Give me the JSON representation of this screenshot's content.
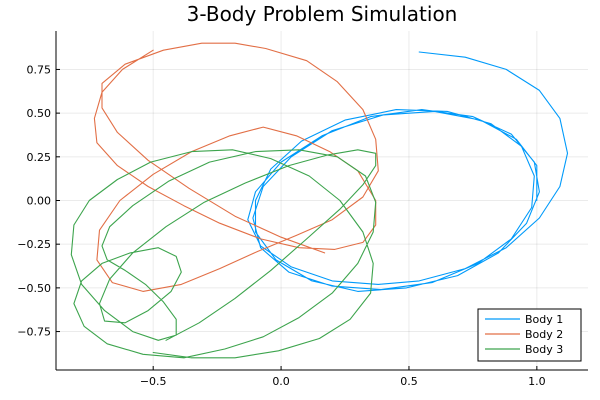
{
  "chart_data": {
    "type": "line",
    "title": "3-Body Problem Simulation",
    "xlabel": "",
    "ylabel": "",
    "xlim": [
      -0.88,
      1.2
    ],
    "ylim": [
      -0.97,
      0.97
    ],
    "xticks": [
      -0.5,
      0.0,
      0.5,
      1.0
    ],
    "xtick_labels": [
      "−0.5",
      "0.0",
      "0.5",
      "1.0"
    ],
    "yticks": [
      -0.75,
      -0.5,
      -0.25,
      0.0,
      0.25,
      0.5,
      0.75
    ],
    "ytick_labels": [
      "−0.75",
      "−0.50",
      "−0.25",
      "0.00",
      "0.25",
      "0.50",
      "0.75"
    ],
    "grid": true,
    "legend_position": "bottom-right",
    "series": [
      {
        "name": "Body 1",
        "color": "#009AFA",
        "x": [
          0.54,
          0.72,
          0.88,
          1.01,
          1.09,
          1.12,
          1.09,
          1.01,
          0.88,
          0.72,
          0.54,
          0.38,
          0.2,
          0.04,
          -0.08,
          -0.13,
          -0.1,
          0.0,
          0.16,
          0.35,
          0.55,
          0.75,
          0.9,
          0.99,
          1.01,
          0.96,
          0.85,
          0.69,
          0.49,
          0.3,
          0.12,
          -0.02,
          -0.1,
          -0.1,
          -0.04,
          0.08,
          0.25,
          0.45,
          0.65,
          0.82,
          0.94,
          0.99,
          0.98,
          0.9,
          0.77,
          0.59,
          0.39,
          0.2,
          0.03,
          -0.08,
          -0.11,
          -0.07,
          0.04,
          0.2,
          0.4,
          0.6,
          0.78,
          0.92,
          1.0,
          1.0
        ],
        "y": [
          0.85,
          0.82,
          0.75,
          0.63,
          0.47,
          0.27,
          0.08,
          -0.1,
          -0.27,
          -0.39,
          -0.46,
          -0.48,
          -0.46,
          -0.38,
          -0.26,
          -0.11,
          0.05,
          0.22,
          0.37,
          0.48,
          0.52,
          0.48,
          0.38,
          0.22,
          0.05,
          -0.13,
          -0.3,
          -0.43,
          -0.5,
          -0.52,
          -0.46,
          -0.34,
          -0.18,
          0.0,
          0.18,
          0.34,
          0.46,
          0.52,
          0.51,
          0.44,
          0.31,
          0.14,
          -0.04,
          -0.22,
          -0.36,
          -0.47,
          -0.51,
          -0.49,
          -0.41,
          -0.27,
          -0.1,
          0.08,
          0.25,
          0.4,
          0.49,
          0.51,
          0.46,
          0.35,
          0.2,
          0.0
        ]
      },
      {
        "name": "Body 2",
        "color": "#E26F46",
        "x": [
          -0.5,
          -0.62,
          -0.7,
          -0.73,
          -0.72,
          -0.64,
          -0.52,
          -0.38,
          -0.24,
          -0.08,
          0.07,
          0.21,
          0.32,
          0.37,
          0.37,
          0.3,
          0.19,
          0.06,
          -0.07,
          -0.2,
          -0.35,
          -0.5,
          -0.63,
          -0.71,
          -0.72,
          -0.66,
          -0.54,
          -0.39,
          -0.24,
          -0.09,
          0.06,
          0.2,
          0.32,
          0.38,
          0.37,
          0.32,
          0.22,
          0.1,
          -0.06,
          -0.18,
          -0.31,
          -0.46,
          -0.61,
          -0.7,
          -0.7,
          -0.64,
          -0.52,
          -0.36,
          -0.18,
          0.0,
          0.17
        ],
        "y": [
          0.86,
          0.75,
          0.62,
          0.47,
          0.33,
          0.2,
          0.08,
          -0.03,
          -0.13,
          -0.22,
          -0.27,
          -0.28,
          -0.24,
          -0.14,
          0.0,
          0.17,
          0.28,
          0.37,
          0.42,
          0.37,
          0.28,
          0.15,
          0.0,
          -0.17,
          -0.34,
          -0.47,
          -0.52,
          -0.48,
          -0.39,
          -0.29,
          -0.2,
          -0.11,
          0.02,
          0.17,
          0.35,
          0.52,
          0.68,
          0.8,
          0.87,
          0.9,
          0.9,
          0.86,
          0.78,
          0.67,
          0.53,
          0.39,
          0.23,
          0.07,
          -0.09,
          -0.21,
          -0.3
        ]
      },
      {
        "name": "Body 3",
        "color": "#3DA44D",
        "x": [
          -0.5,
          -0.35,
          -0.18,
          -0.01,
          0.15,
          0.27,
          0.35,
          0.36,
          0.32,
          0.23,
          0.11,
          -0.04,
          -0.19,
          -0.35,
          -0.51,
          -0.64,
          -0.75,
          -0.81,
          -0.82,
          -0.78,
          -0.69,
          -0.58,
          -0.48,
          -0.41,
          -0.41,
          -0.46,
          -0.53,
          -0.61,
          -0.68,
          -0.7,
          -0.67,
          -0.58,
          -0.44,
          -0.28,
          -0.1,
          0.07,
          0.22,
          0.33,
          0.37,
          0.36,
          0.3,
          0.2,
          0.07,
          -0.07,
          -0.22,
          -0.38,
          -0.54,
          -0.68,
          -0.77,
          -0.81,
          -0.78,
          -0.7,
          -0.59,
          -0.48,
          -0.41,
          -0.39,
          -0.43,
          -0.52,
          -0.61,
          -0.69,
          -0.71,
          -0.67,
          -0.58,
          -0.45,
          -0.3,
          -0.14,
          0.03,
          0.18,
          0.3,
          0.37,
          0.37,
          0.32,
          0.23,
          0.1,
          -0.04,
          -0.18,
          -0.32,
          -0.45
        ],
        "y": [
          -0.87,
          -0.9,
          -0.9,
          -0.86,
          -0.79,
          -0.68,
          -0.53,
          -0.36,
          -0.18,
          0.0,
          0.14,
          0.24,
          0.29,
          0.28,
          0.22,
          0.12,
          0.0,
          -0.14,
          -0.31,
          -0.48,
          -0.63,
          -0.75,
          -0.8,
          -0.77,
          -0.68,
          -0.58,
          -0.48,
          -0.4,
          -0.34,
          -0.26,
          -0.15,
          -0.03,
          0.11,
          0.22,
          0.28,
          0.29,
          0.25,
          0.14,
          -0.01,
          -0.18,
          -0.36,
          -0.53,
          -0.67,
          -0.78,
          -0.85,
          -0.9,
          -0.88,
          -0.82,
          -0.72,
          -0.59,
          -0.46,
          -0.36,
          -0.3,
          -0.27,
          -0.32,
          -0.41,
          -0.52,
          -0.63,
          -0.7,
          -0.69,
          -0.59,
          -0.45,
          -0.3,
          -0.15,
          -0.01,
          0.1,
          0.2,
          0.26,
          0.29,
          0.27,
          0.2,
          0.09,
          -0.05,
          -0.22,
          -0.4,
          -0.56,
          -0.7,
          -0.8
        ]
      }
    ]
  }
}
